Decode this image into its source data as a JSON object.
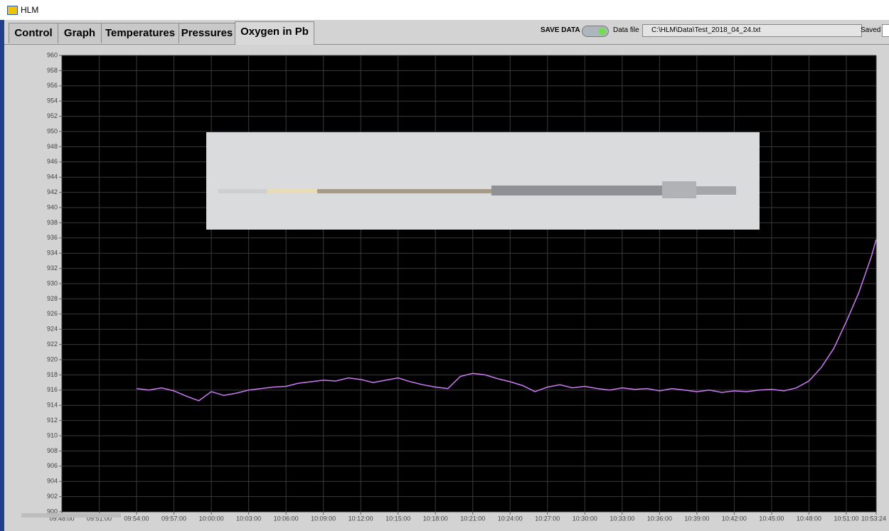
{
  "ui": {
    "window_title": "HLM",
    "tabs": [
      "Control",
      "Graph",
      "Temperatures",
      "Pressures",
      "Oxygen in Pb"
    ],
    "save_data": "SAVE DATA",
    "data_file_label": "Data file",
    "data_file_path": "C:\\HLM\\Data\\Test_2018_04_24.txt",
    "saved_label": "Saved"
  },
  "chart_data": {
    "type": "line",
    "color": "#cc7af5",
    "grid": true,
    "xlim": [
      "09:48:00",
      "10:53:24"
    ],
    "xticks": [
      "09:48:00",
      "09:51:00",
      "09:54:00",
      "09:57:00",
      "10:00:00",
      "10:03:00",
      "10:06:00",
      "10:09:00",
      "10:12:00",
      "10:15:00",
      "10:18:00",
      "10:21:00",
      "10:24:00",
      "10:27:00",
      "10:30:00",
      "10:33:00",
      "10:36:00",
      "10:39:00",
      "10:42:00",
      "10:45:00",
      "10:48:00",
      "10:51:00",
      "10:53:24"
    ],
    "ylim": [
      900,
      960
    ],
    "yticks": [
      900,
      902,
      904,
      906,
      908,
      910,
      912,
      914,
      916,
      918,
      920,
      922,
      924,
      926,
      928,
      930,
      932,
      934,
      936,
      938,
      940,
      942,
      944,
      946,
      948,
      950,
      952,
      954,
      956,
      958,
      960
    ],
    "x": [
      "09:54:00",
      "09:55:00",
      "09:56:00",
      "09:57:00",
      "09:58:00",
      "09:59:00",
      "10:00:00",
      "10:01:00",
      "10:02:00",
      "10:03:00",
      "10:04:00",
      "10:05:00",
      "10:06:00",
      "10:07:00",
      "10:08:00",
      "10:09:00",
      "10:10:00",
      "10:11:00",
      "10:12:00",
      "10:13:00",
      "10:14:00",
      "10:15:00",
      "10:16:00",
      "10:17:00",
      "10:18:00",
      "10:19:00",
      "10:20:00",
      "10:21:00",
      "10:22:00",
      "10:23:00",
      "10:24:00",
      "10:25:00",
      "10:26:00",
      "10:27:00",
      "10:28:00",
      "10:29:00",
      "10:30:00",
      "10:31:00",
      "10:32:00",
      "10:33:00",
      "10:34:00",
      "10:35:00",
      "10:36:00",
      "10:37:00",
      "10:38:00",
      "10:39:00",
      "10:40:00",
      "10:41:00",
      "10:42:00",
      "10:43:00",
      "10:44:00",
      "10:45:00",
      "10:46:00",
      "10:47:00",
      "10:48:00",
      "10:49:00",
      "10:50:00",
      "10:51:00",
      "10:52:00",
      "10:53:00",
      "10:53:24"
    ],
    "values": [
      916.2,
      916.0,
      916.3,
      915.9,
      915.2,
      914.6,
      915.8,
      915.3,
      915.6,
      916.0,
      916.2,
      916.4,
      916.5,
      916.9,
      917.1,
      917.3,
      917.2,
      917.6,
      917.4,
      917.0,
      917.3,
      917.6,
      917.1,
      916.7,
      916.4,
      916.2,
      917.8,
      918.2,
      918.0,
      917.5,
      917.1,
      916.6,
      915.8,
      916.4,
      916.7,
      916.3,
      916.5,
      916.2,
      916.0,
      916.3,
      916.1,
      916.2,
      915.9,
      916.2,
      916.0,
      915.8,
      916.0,
      915.7,
      915.9,
      915.8,
      916.0,
      916.1,
      915.9,
      916.3,
      917.2,
      919.0,
      921.5,
      925.0,
      928.8,
      933.5,
      935.8
    ]
  }
}
